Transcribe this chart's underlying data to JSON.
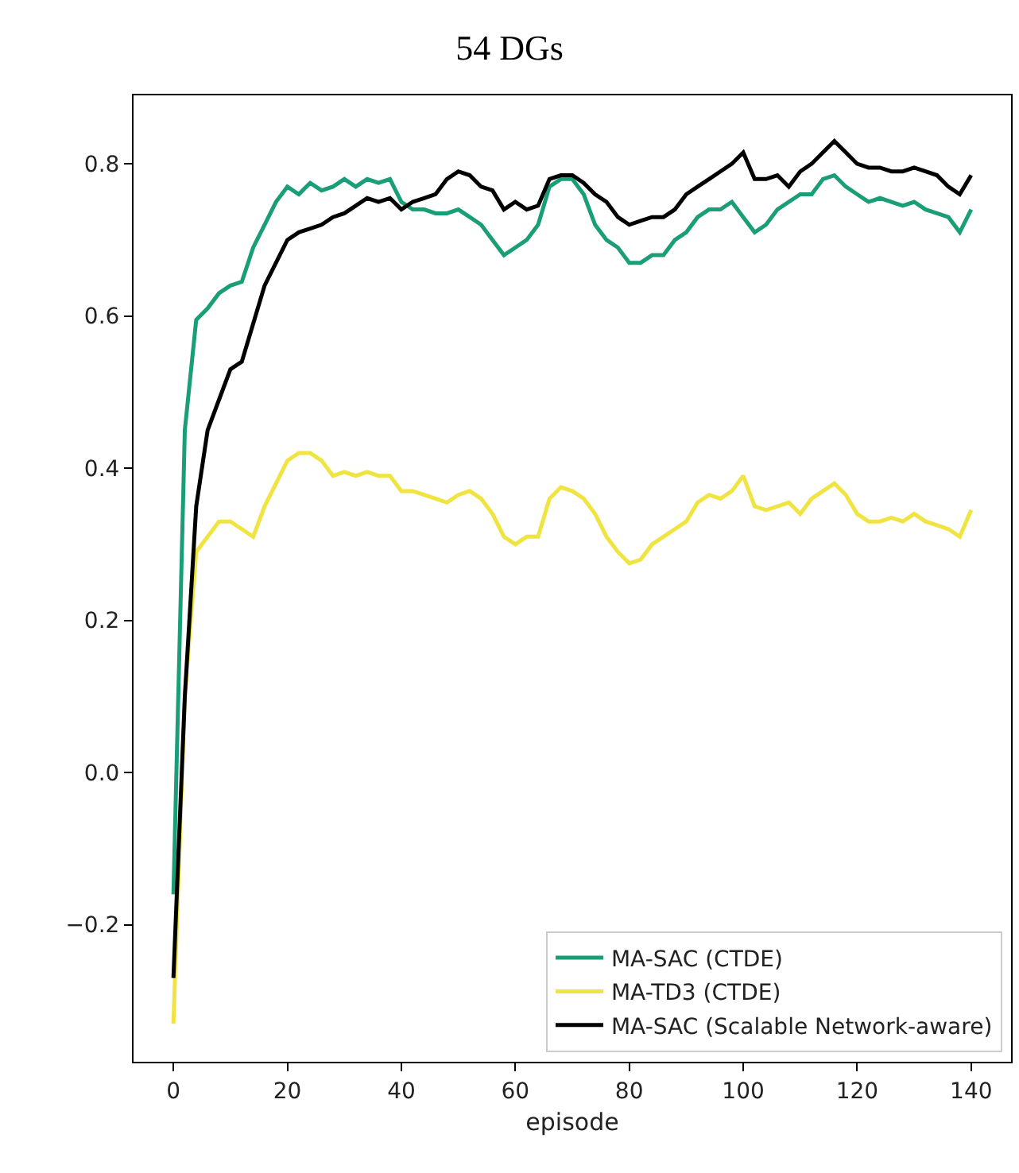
{
  "chart_data": {
    "type": "line",
    "title": "54 DGs",
    "xlabel": "episode",
    "x": [
      0,
      2,
      4,
      6,
      8,
      10,
      12,
      14,
      16,
      18,
      20,
      22,
      24,
      26,
      28,
      30,
      32,
      34,
      36,
      38,
      40,
      42,
      44,
      46,
      48,
      50,
      52,
      54,
      56,
      58,
      60,
      62,
      64,
      66,
      68,
      70,
      72,
      74,
      76,
      78,
      80,
      82,
      84,
      86,
      88,
      90,
      92,
      94,
      96,
      98,
      100,
      102,
      104,
      106,
      108,
      110,
      112,
      114,
      116,
      118,
      120,
      122,
      124,
      126,
      128,
      130,
      132,
      134,
      136,
      138,
      140
    ],
    "series": [
      {
        "name": "MA-SAC (CTDE)",
        "color": "#1a9e77",
        "values": [
          -0.16,
          0.45,
          0.595,
          0.61,
          0.63,
          0.64,
          0.645,
          0.69,
          0.72,
          0.75,
          0.77,
          0.76,
          0.775,
          0.765,
          0.77,
          0.78,
          0.77,
          0.78,
          0.775,
          0.78,
          0.75,
          0.74,
          0.74,
          0.735,
          0.735,
          0.74,
          0.73,
          0.72,
          0.7,
          0.68,
          0.69,
          0.7,
          0.72,
          0.77,
          0.78,
          0.78,
          0.76,
          0.72,
          0.7,
          0.69,
          0.67,
          0.67,
          0.68,
          0.68,
          0.7,
          0.71,
          0.73,
          0.74,
          0.74,
          0.75,
          0.73,
          0.71,
          0.72,
          0.74,
          0.75,
          0.76,
          0.76,
          0.78,
          0.785,
          0.77,
          0.76,
          0.75,
          0.755,
          0.75,
          0.745,
          0.75,
          0.74,
          0.735,
          0.73,
          0.71,
          0.74
        ]
      },
      {
        "name": "MA-TD3 (CTDE)",
        "color": "#f0e442",
        "values": [
          -0.33,
          0.1,
          0.29,
          0.31,
          0.33,
          0.33,
          0.32,
          0.31,
          0.35,
          0.38,
          0.41,
          0.42,
          0.42,
          0.41,
          0.39,
          0.395,
          0.39,
          0.395,
          0.39,
          0.39,
          0.37,
          0.37,
          0.365,
          0.36,
          0.355,
          0.365,
          0.37,
          0.36,
          0.34,
          0.31,
          0.3,
          0.31,
          0.31,
          0.36,
          0.375,
          0.37,
          0.36,
          0.34,
          0.31,
          0.29,
          0.275,
          0.28,
          0.3,
          0.31,
          0.32,
          0.33,
          0.355,
          0.365,
          0.36,
          0.37,
          0.39,
          0.35,
          0.345,
          0.35,
          0.355,
          0.34,
          0.36,
          0.37,
          0.38,
          0.365,
          0.34,
          0.33,
          0.33,
          0.335,
          0.33,
          0.34,
          0.33,
          0.325,
          0.32,
          0.31,
          0.345
        ]
      },
      {
        "name": "MA-SAC (Scalable Network-aware)",
        "color": "#000000",
        "values": [
          -0.27,
          0.1,
          0.35,
          0.45,
          0.49,
          0.53,
          0.54,
          0.59,
          0.64,
          0.67,
          0.7,
          0.71,
          0.715,
          0.72,
          0.73,
          0.735,
          0.745,
          0.755,
          0.75,
          0.755,
          0.74,
          0.75,
          0.755,
          0.76,
          0.78,
          0.79,
          0.785,
          0.77,
          0.765,
          0.74,
          0.75,
          0.74,
          0.745,
          0.78,
          0.785,
          0.785,
          0.775,
          0.76,
          0.75,
          0.73,
          0.72,
          0.725,
          0.73,
          0.73,
          0.74,
          0.76,
          0.77,
          0.78,
          0.79,
          0.8,
          0.815,
          0.78,
          0.78,
          0.785,
          0.77,
          0.79,
          0.8,
          0.815,
          0.83,
          0.815,
          0.8,
          0.795,
          0.795,
          0.79,
          0.79,
          0.795,
          0.79,
          0.785,
          0.77,
          0.76,
          0.785
        ]
      }
    ],
    "xlim": [
      -7,
      147
    ],
    "xticks": [
      0,
      20,
      40,
      60,
      80,
      100,
      120,
      140
    ],
    "ylim": [
      -0.38,
      0.89
    ],
    "yticks": [
      {
        "value": -0.2,
        "label": "−0.2"
      },
      {
        "value": 0,
        "label": "0.0"
      },
      {
        "value": 0.2,
        "label": "0.2"
      },
      {
        "value": 0.4,
        "label": "0.4"
      },
      {
        "value": 0.6,
        "label": "0.6"
      },
      {
        "value": 0.8,
        "label": "0.8"
      }
    ],
    "legend": "bottom right",
    "grid": false,
    "marker": "none",
    "line_style": "solid"
  }
}
